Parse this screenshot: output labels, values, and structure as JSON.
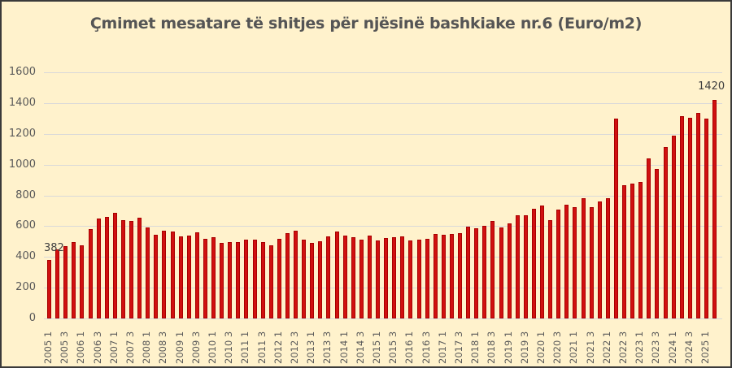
{
  "chart_data": {
    "type": "bar",
    "title": "Çmimet mesatare të shitjes për njësinë bashkiake nr.6 (Euro/m2)",
    "xlabel": "",
    "ylabel": "",
    "ylim": [
      0,
      1600
    ],
    "yticks": [
      0,
      200,
      400,
      600,
      800,
      1000,
      1200,
      1400,
      1600
    ],
    "grid": true,
    "legend": null,
    "bar_color": "#d01010",
    "background": "#fff2cc",
    "categories": [
      "2005 1",
      "2005 2",
      "2005 3",
      "2005 4",
      "2006 1",
      "2006 2",
      "2006 3",
      "2006 4",
      "2007 1",
      "2007 2",
      "2007 3",
      "2007 4",
      "2008 1",
      "2008 2",
      "2008 3",
      "2008 4",
      "2009 1",
      "2009 2",
      "2009 3",
      "2009 4",
      "2010 1",
      "2010 2",
      "2010 3",
      "2010 4",
      "2011 1",
      "2011 2",
      "2011 3",
      "2011 4",
      "2012 1",
      "2012 2",
      "2012 3",
      "2012 4",
      "2013 1",
      "2013 2",
      "2013 3",
      "2013 4",
      "2014 1",
      "2014 2",
      "2014 3",
      "2014 4",
      "2015 1",
      "2015 2",
      "2015 3",
      "2015 4",
      "2016 1",
      "2016 2",
      "2016 3",
      "2016 4",
      "2017 1",
      "2017 2",
      "2017 3",
      "2017 4",
      "2018 1",
      "2018 2",
      "2018 3",
      "2018 4",
      "2019 1",
      "2019 2",
      "2019 3",
      "2019 4",
      "2020 1",
      "2020 2",
      "2020 3",
      "2020 4",
      "2021 1",
      "2021 2",
      "2021 3",
      "2021 4",
      "2022 1",
      "2022 2",
      "2022 3",
      "2022 4",
      "2023 1",
      "2023 2",
      "2023 3",
      "2023 4",
      "2024 1",
      "2024 2",
      "2024 3",
      "2024 4",
      "2025 1",
      "2025 2"
    ],
    "visible_tick_labels": [
      "2005 1",
      "2005 3",
      "2006 1",
      "2006 3",
      "2007 1",
      "2007 3",
      "2008 1",
      "2008 3",
      "2009 1",
      "2009 3",
      "2010 1",
      "2010 3",
      "2011 1",
      "2011 3",
      "2012 1",
      "2012 3",
      "2013 1",
      "2013 3",
      "2014 1",
      "2014 3",
      "2015 1",
      "2015 3",
      "2016 1",
      "2016 3",
      "2017 1",
      "2017 3",
      "2018 1",
      "2018 3",
      "2019 1",
      "2019 3",
      "2020 1",
      "2020 3",
      "2021 1",
      "2021 3",
      "2022 1",
      "2022 3",
      "2023 1",
      "2023 3",
      "2024 1",
      "2024 3",
      "2025 1"
    ],
    "values": [
      382,
      447,
      468,
      495,
      474,
      579,
      647,
      658,
      684,
      637,
      632,
      653,
      589,
      542,
      568,
      563,
      532,
      537,
      558,
      516,
      526,
      489,
      495,
      495,
      511,
      511,
      495,
      474,
      516,
      553,
      568,
      511,
      489,
      500,
      532,
      563,
      537,
      526,
      511,
      537,
      505,
      521,
      526,
      532,
      505,
      511,
      516,
      547,
      542,
      547,
      553,
      595,
      584,
      600,
      632,
      589,
      616,
      668,
      668,
      711,
      732,
      637,
      705,
      737,
      726,
      784,
      721,
      763,
      784,
      1300,
      868,
      874,
      889,
      1042,
      974,
      1116,
      1189,
      1316,
      1305,
      1337,
      1300,
      1420
    ],
    "annotations": [
      {
        "index": 0,
        "text": "382"
      },
      {
        "index": 81,
        "text": "1420"
      }
    ]
  }
}
